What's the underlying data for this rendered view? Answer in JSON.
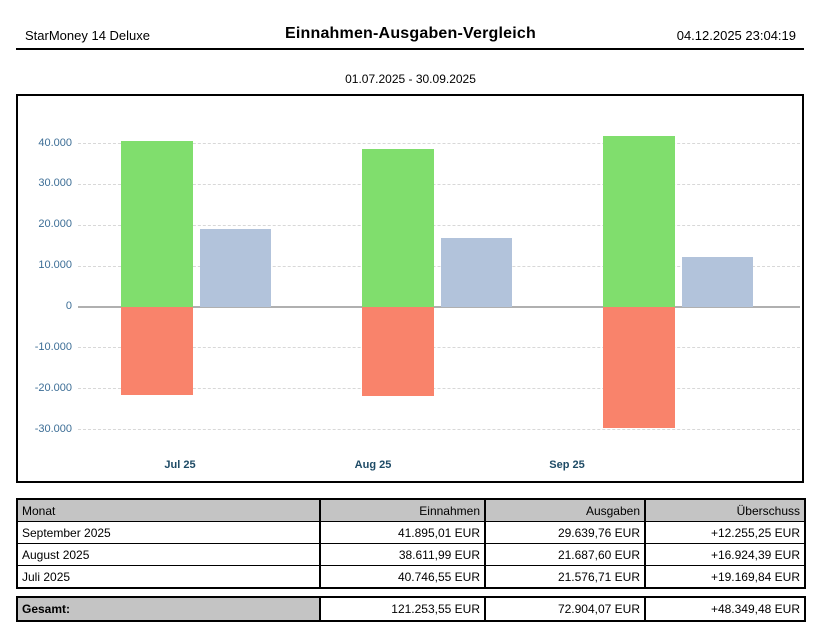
{
  "header": {
    "app_name": "StarMoney 14 Deluxe",
    "title": "Einnahmen-Ausgaben-Vergleich",
    "datetime": "04.12.2025 23:04:19"
  },
  "chart": {
    "period": "01.07.2025 - 30.09.2025"
  },
  "chart_data": {
    "type": "bar",
    "title": "01.07.2025 - 30.09.2025",
    "categories": [
      "Jul 25",
      "Aug 25",
      "Sep 25"
    ],
    "series": [
      {
        "name": "Einnahmen",
        "color": "#80de6d",
        "values": [
          40746.55,
          38611.99,
          41895.01
        ]
      },
      {
        "name": "Ausgaben",
        "color": "#f9836b",
        "values": [
          -21576.71,
          -21687.6,
          -29639.76
        ]
      },
      {
        "name": "Überschuss",
        "color": "#b2c3db",
        "values": [
          19169.84,
          16924.39,
          12255.25
        ]
      }
    ],
    "ylim": [
      -35000,
      45000
    ],
    "yticks": [
      40000,
      30000,
      20000,
      10000,
      0,
      -10000,
      -20000,
      -30000
    ],
    "ytick_labels": [
      "40.000",
      "30.000",
      "20.000",
      "10.000",
      "0",
      "-10.000",
      "-20.000",
      "-30.000"
    ],
    "grid": true,
    "legend": "none",
    "colors": {
      "grid": "#d8d8d8",
      "zero_line": "#b0b0b0",
      "ytick_text": "#3d6e96",
      "xtick_text": "#1e4b66"
    }
  },
  "table": {
    "headers": [
      "Monat",
      "Einnahmen",
      "Ausgaben",
      "Überschuss"
    ],
    "rows": [
      [
        "September 2025",
        "41.895,01 EUR",
        "29.639,76 EUR",
        "+12.255,25 EUR"
      ],
      [
        "August 2025",
        "38.611,99 EUR",
        "21.687,60 EUR",
        "+16.924,39 EUR"
      ],
      [
        "Juli 2025",
        "40.746,55 EUR",
        "21.576,71 EUR",
        "+19.169,84 EUR"
      ]
    ],
    "total": {
      "label": "Gesamt:",
      "values": [
        "121.253,55 EUR",
        "72.904,07 EUR",
        "+48.349,48 EUR"
      ]
    }
  }
}
